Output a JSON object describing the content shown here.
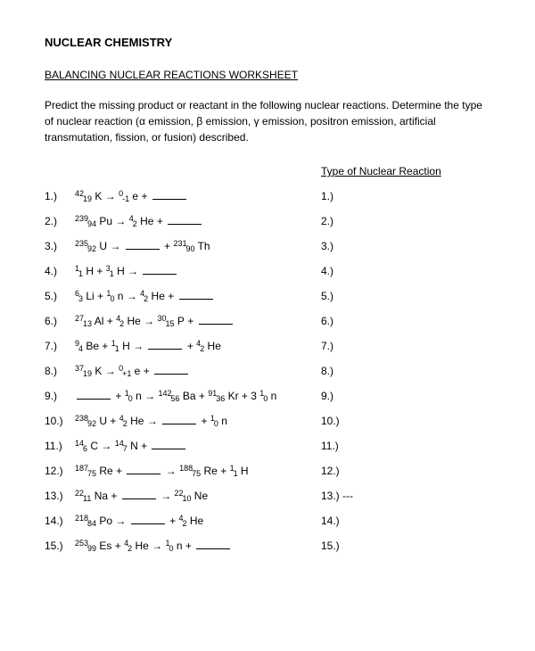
{
  "title": "NUCLEAR CHEMISTRY",
  "subtitle": "BALANCING NUCLEAR REACTIONS WORKSHEET",
  "intro": "Predict the missing product or reactant in the following nuclear reactions.  Determine the type of nuclear reaction (α emission, β emission, γ emission, positron emission, artificial transmutation, fission, or fusion) described.",
  "type_header": "Type of Nuclear Reaction",
  "arrow_glyph": "→",
  "plus": "+",
  "rows": [
    {
      "n": "1.)",
      "tokens": [
        {
          "t": "iso",
          "a": "42",
          "z": "19",
          "s": "K"
        },
        {
          "t": "arr"
        },
        {
          "t": "iso",
          "a": "0",
          "z": "-1",
          "s": "e"
        },
        {
          "t": "plus"
        },
        {
          "t": "blank"
        }
      ],
      "ans": "1.)"
    },
    {
      "n": "2.)",
      "tokens": [
        {
          "t": "iso",
          "a": "239",
          "z": "94",
          "s": "Pu"
        },
        {
          "t": "arr"
        },
        {
          "t": "iso",
          "a": "4",
          "z": "2",
          "s": "He"
        },
        {
          "t": "plus"
        },
        {
          "t": "blank"
        }
      ],
      "ans": "2.)"
    },
    {
      "n": "3.)",
      "tokens": [
        {
          "t": "iso",
          "a": "235",
          "z": "92",
          "s": "U"
        },
        {
          "t": "arr"
        },
        {
          "t": "blank"
        },
        {
          "t": "plus"
        },
        {
          "t": "iso",
          "a": "231",
          "z": "90",
          "s": "Th"
        }
      ],
      "ans": "3.)"
    },
    {
      "n": "4.)",
      "tokens": [
        {
          "t": "iso",
          "a": "1",
          "z": "1",
          "s": "H"
        },
        {
          "t": "plus"
        },
        {
          "t": "iso",
          "a": "3",
          "z": "1",
          "s": "H"
        },
        {
          "t": "arr"
        },
        {
          "t": "blank"
        }
      ],
      "ans": "4.)"
    },
    {
      "n": "5.)",
      "tokens": [
        {
          "t": "iso",
          "a": "6",
          "z": "3",
          "s": "Li"
        },
        {
          "t": "plus"
        },
        {
          "t": "iso",
          "a": "1",
          "z": "0",
          "s": "n"
        },
        {
          "t": "arr"
        },
        {
          "t": "iso",
          "a": "4",
          "z": "2",
          "s": "He"
        },
        {
          "t": "plus"
        },
        {
          "t": "blank"
        }
      ],
      "ans": "5.)"
    },
    {
      "n": "6.)",
      "tokens": [
        {
          "t": "iso",
          "a": "27",
          "z": "13",
          "s": "Al"
        },
        {
          "t": "plus"
        },
        {
          "t": "iso",
          "a": "4",
          "z": "2",
          "s": "He"
        },
        {
          "t": "arr"
        },
        {
          "t": "iso",
          "a": "30",
          "z": "15",
          "s": "P"
        },
        {
          "t": "plus"
        },
        {
          "t": "blank"
        }
      ],
      "ans": "6.)"
    },
    {
      "n": "7.)",
      "tokens": [
        {
          "t": "iso",
          "a": "9",
          "z": "4",
          "s": "Be"
        },
        {
          "t": "plus"
        },
        {
          "t": "iso",
          "a": "1",
          "z": "1",
          "s": "H"
        },
        {
          "t": "arr"
        },
        {
          "t": "blank"
        },
        {
          "t": "plus"
        },
        {
          "t": "iso",
          "a": "4",
          "z": "2",
          "s": "He"
        }
      ],
      "ans": "7.)"
    },
    {
      "n": "8.)",
      "tokens": [
        {
          "t": "iso",
          "a": "37",
          "z": "19",
          "s": "K"
        },
        {
          "t": "arr"
        },
        {
          "t": "iso",
          "a": "0",
          "z": "+1",
          "s": "e"
        },
        {
          "t": "plus"
        },
        {
          "t": "blank"
        }
      ],
      "ans": "8.)"
    },
    {
      "n": "9.)",
      "tokens": [
        {
          "t": "blank"
        },
        {
          "t": "plus"
        },
        {
          "t": "iso",
          "a": "1",
          "z": "0",
          "s": "n"
        },
        {
          "t": "arr"
        },
        {
          "t": "iso",
          "a": "142",
          "z": "56",
          "s": "Ba"
        },
        {
          "t": "plus"
        },
        {
          "t": "iso",
          "a": "91",
          "z": "36",
          "s": "Kr"
        },
        {
          "t": "plus"
        },
        {
          "t": "txt",
          "v": "3 "
        },
        {
          "t": "iso",
          "a": "1",
          "z": "0",
          "s": "n"
        }
      ],
      "ans": "9.)"
    },
    {
      "n": "10.)",
      "tokens": [
        {
          "t": "iso",
          "a": "238",
          "z": "92",
          "s": "U"
        },
        {
          "t": "plus"
        },
        {
          "t": "iso",
          "a": "4",
          "z": "2",
          "s": "He"
        },
        {
          "t": "arr"
        },
        {
          "t": "blank"
        },
        {
          "t": "plus"
        },
        {
          "t": "iso",
          "a": "1",
          "z": "0",
          "s": "n"
        }
      ],
      "ans": "10.)"
    },
    {
      "n": "11.)",
      "tokens": [
        {
          "t": "iso",
          "a": "14",
          "z": "6",
          "s": "C"
        },
        {
          "t": "arr"
        },
        {
          "t": "iso",
          "a": "14",
          "z": "7",
          "s": "N"
        },
        {
          "t": "plus"
        },
        {
          "t": "blank"
        }
      ],
      "ans": "11.)"
    },
    {
      "n": "12.)",
      "tokens": [
        {
          "t": "iso",
          "a": "187",
          "z": "75",
          "s": "Re"
        },
        {
          "t": "plus"
        },
        {
          "t": "blank"
        },
        {
          "t": "arr"
        },
        {
          "t": "iso",
          "a": "188",
          "z": "75",
          "s": "Re"
        },
        {
          "t": "plus"
        },
        {
          "t": "iso",
          "a": "1",
          "z": "1",
          "s": "H"
        }
      ],
      "ans": "12.)"
    },
    {
      "n": "13.)",
      "tokens": [
        {
          "t": "iso",
          "a": "22",
          "z": "11",
          "s": "Na"
        },
        {
          "t": "plus"
        },
        {
          "t": "blank"
        },
        {
          "t": "arr"
        },
        {
          "t": "iso",
          "a": "22",
          "z": "10",
          "s": "Ne"
        }
      ],
      "ans": "13.) ---"
    },
    {
      "n": "14.)",
      "tokens": [
        {
          "t": "iso",
          "a": "218",
          "z": "84",
          "s": "Po"
        },
        {
          "t": "arr"
        },
        {
          "t": "blank"
        },
        {
          "t": "plus"
        },
        {
          "t": "iso",
          "a": "4",
          "z": "2",
          "s": "He"
        }
      ],
      "ans": "14.)"
    },
    {
      "n": "15.)",
      "tokens": [
        {
          "t": "iso",
          "a": "253",
          "z": "99",
          "s": "Es"
        },
        {
          "t": "plus"
        },
        {
          "t": "iso",
          "a": "4",
          "z": "2",
          "s": "He"
        },
        {
          "t": "arr"
        },
        {
          "t": "iso",
          "a": "1",
          "z": "0",
          "s": "n"
        },
        {
          "t": "plus"
        },
        {
          "t": "blank"
        }
      ],
      "ans": "15.)"
    }
  ]
}
